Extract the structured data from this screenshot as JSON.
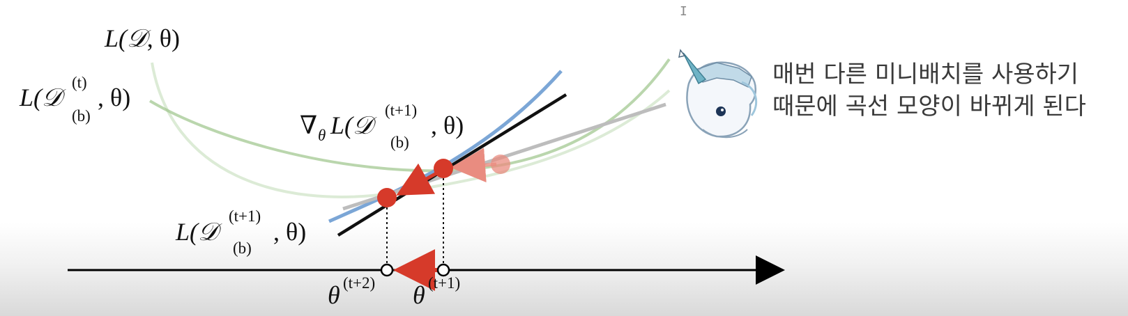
{
  "labels": {
    "full_loss": {
      "pre": "L(",
      "set": "𝒟",
      "post": ", θ)"
    },
    "batch_t_loss": {
      "pre": "L(",
      "set": "𝒟",
      "sup": "(t)",
      "sub": "(b)",
      "post": ", θ)"
    },
    "gradient": {
      "nabla": "∇",
      "nabla_sub": "θ",
      "pre": "L(",
      "set": "𝒟",
      "sup": "(t+1)",
      "sub": "(b)",
      "post": ", θ)"
    },
    "batch_t1_loss": {
      "pre": "L(",
      "set": "𝒟",
      "sup": "(t+1)",
      "sub": "(b)",
      "post": ", θ)"
    },
    "theta_t2": {
      "base": "θ",
      "sup": "(t+2)"
    },
    "theta_t1": {
      "base": "θ",
      "sup": "(t+1)"
    }
  },
  "caption": {
    "line1": "매번 다른 미니배치를 사용하기",
    "line2": "때문에 곡선 모양이 바뀌게 된다"
  },
  "colors": {
    "curve_green": "#9cc58a",
    "curve_blue": "#7ba6d6",
    "tangent_black": "#111111",
    "tangent_gray": "#bdbdbd",
    "point_red": "#d63a2a",
    "axis": "#000000"
  },
  "icons": {
    "mascot": "unicorn-mascot-icon",
    "cursor": "text-cursor-icon"
  },
  "cursor_glyph": "I"
}
